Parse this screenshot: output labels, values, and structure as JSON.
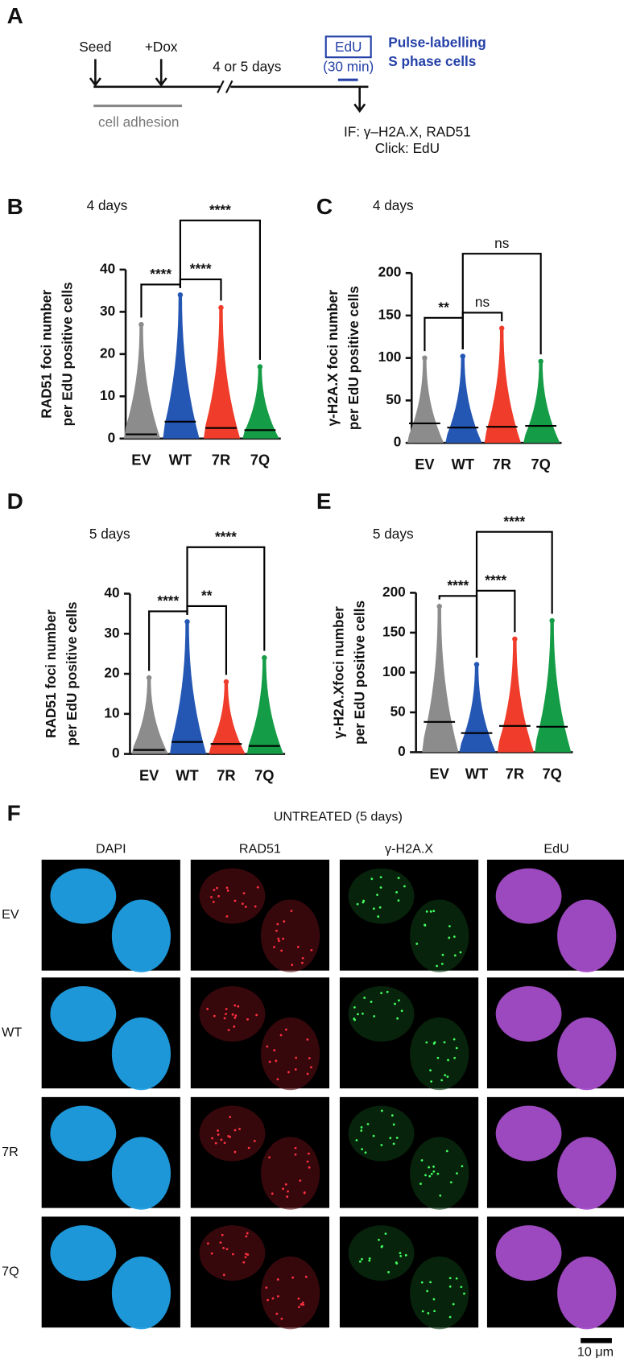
{
  "panel_labels": [
    "A",
    "B",
    "C",
    "D",
    "E",
    "F"
  ],
  "timeline": {
    "seed": "Seed",
    "dox": "+Dox",
    "duration": "4 or 5 days",
    "edu": "EdU",
    "pulse": "(30 min)",
    "pulse_note": [
      "Pulse-labelling",
      "S phase cells"
    ],
    "adhesion": "cell adhesion",
    "readout": [
      "IF: γ–H2A.X, RAD51",
      "Click: EdU"
    ]
  },
  "chart_data": [
    {
      "type": "dotplot",
      "subtitle": "4 days",
      "y_label": [
        "RAD51 foci number",
        "per EdU positive cells"
      ],
      "categories": [
        "EV",
        "WT",
        "7R",
        "7Q"
      ],
      "colors": [
        "#8c8c8c",
        "#2456b4",
        "#f03c2a",
        "#149c46"
      ],
      "values": [
        1,
        4,
        2.5,
        2
      ],
      "max": [
        27,
        34,
        31,
        17
      ],
      "ylim": [
        0,
        40
      ],
      "yticks": [
        0,
        10,
        20,
        30,
        40
      ],
      "comparisons": [
        {
          "from": 0,
          "to": 1,
          "label": "****"
        },
        {
          "from": 1,
          "to": 2,
          "label": "****"
        },
        {
          "from": 1,
          "to": 3,
          "label": "****"
        }
      ]
    },
    {
      "type": "dotplot",
      "subtitle": "4 days",
      "y_label": [
        "γ-H2A.X foci number",
        "per EdU positive cells"
      ],
      "categories": [
        "EV",
        "WT",
        "7R",
        "7Q"
      ],
      "colors": [
        "#8c8c8c",
        "#2456b4",
        "#f03c2a",
        "#149c46"
      ],
      "values": [
        23,
        18,
        19,
        20
      ],
      "max": [
        100,
        102,
        135,
        96
      ],
      "ylim": [
        0,
        200
      ],
      "yticks": [
        0,
        50,
        100,
        150,
        200
      ],
      "comparisons": [
        {
          "from": 0,
          "to": 1,
          "label": "**"
        },
        {
          "from": 1,
          "to": 2,
          "label": "ns"
        },
        {
          "from": 1,
          "to": 3,
          "label": "ns"
        }
      ]
    },
    {
      "type": "dotplot",
      "subtitle": "5 days",
      "y_label": [
        "RAD51 foci number",
        "per EdU positive cells"
      ],
      "categories": [
        "EV",
        "WT",
        "7R",
        "7Q"
      ],
      "colors": [
        "#8c8c8c",
        "#2456b4",
        "#f03c2a",
        "#149c46"
      ],
      "values": [
        1,
        3,
        2.5,
        2
      ],
      "max": [
        19,
        33,
        18,
        24
      ],
      "ylim": [
        0,
        40
      ],
      "yticks": [
        0,
        10,
        20,
        30,
        40
      ],
      "comparisons": [
        {
          "from": 0,
          "to": 1,
          "label": "****"
        },
        {
          "from": 1,
          "to": 2,
          "label": "**"
        },
        {
          "from": 1,
          "to": 3,
          "label": "****"
        }
      ]
    },
    {
      "type": "dotplot",
      "subtitle": "5 days",
      "y_label": [
        "γ-H2A.Xfoci number",
        "per EdU positive cells"
      ],
      "categories": [
        "EV",
        "WT",
        "7R",
        "7Q"
      ],
      "colors": [
        "#8c8c8c",
        "#2456b4",
        "#f03c2a",
        "#149c46"
      ],
      "values": [
        38,
        24,
        33,
        32
      ],
      "max": [
        183,
        110,
        142,
        165
      ],
      "ylim": [
        0,
        200
      ],
      "yticks": [
        0,
        50,
        100,
        150,
        200
      ],
      "comparisons": [
        {
          "from": 0,
          "to": 1,
          "label": "****"
        },
        {
          "from": 1,
          "to": 2,
          "label": "****"
        },
        {
          "from": 1,
          "to": 3,
          "label": "****"
        }
      ]
    }
  ],
  "images": {
    "title": "UNTREATED (5 days)",
    "columns": [
      "DAPI",
      "RAD51",
      "γ-H2A.X",
      "EdU"
    ],
    "rows": [
      "EV",
      "WT",
      "7R",
      "7Q"
    ],
    "scale_bar": "10 μm"
  }
}
